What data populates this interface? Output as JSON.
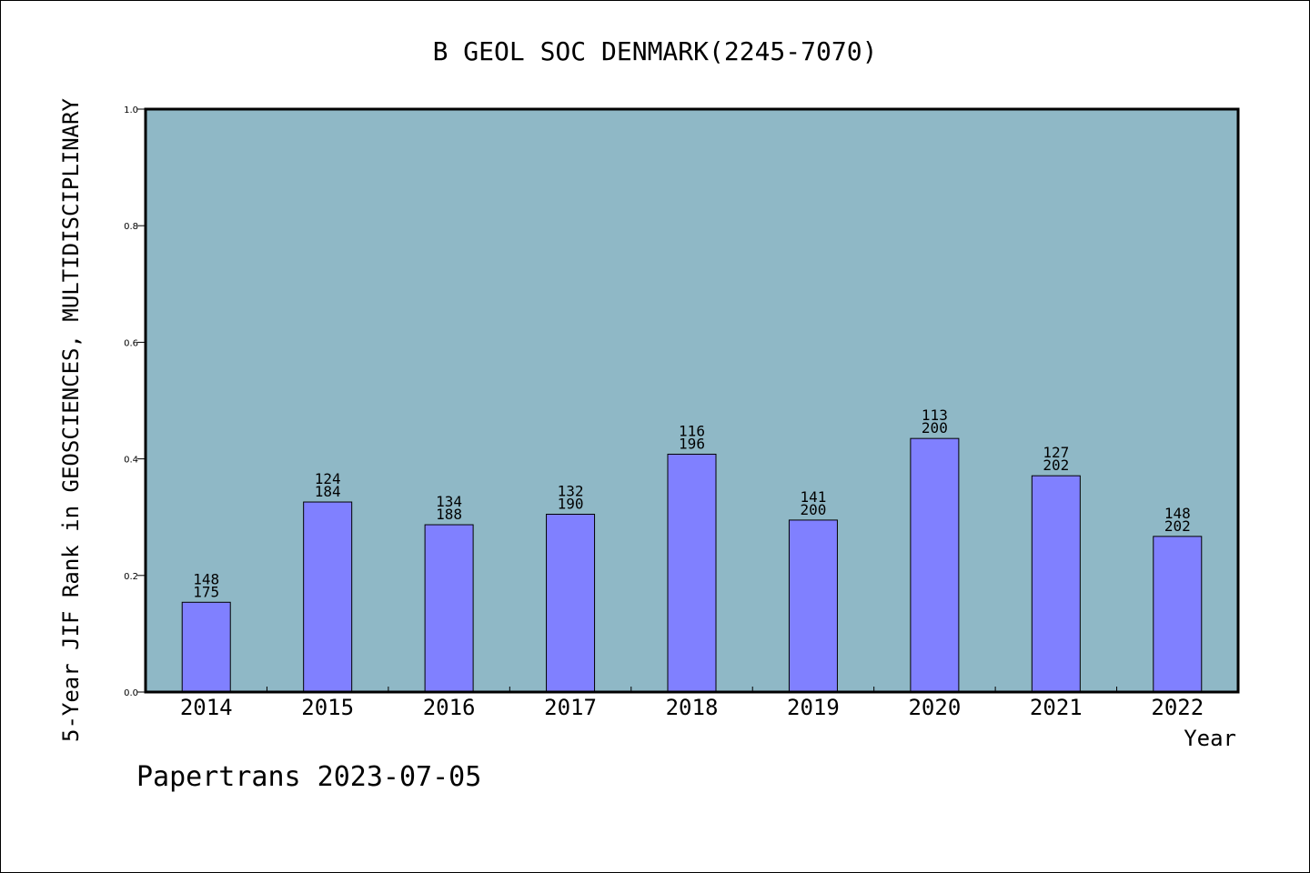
{
  "chart_data": {
    "type": "bar",
    "title": "B GEOL SOC DENMARK(2245-7070)",
    "xlabel": "Year",
    "ylabel": "5-Year JIF Rank in GEOSCIENCES, MULTIDISCIPLINARY",
    "ylim": [
      0,
      1.0
    ],
    "yticks": [
      "0.0",
      "0.2",
      "0.4",
      "0.6",
      "0.8",
      "1.0"
    ],
    "categories": [
      "2014",
      "2015",
      "2016",
      "2017",
      "2018",
      "2019",
      "2020",
      "2021",
      "2022"
    ],
    "values": [
      0.154,
      0.326,
      0.287,
      0.305,
      0.408,
      0.295,
      0.435,
      0.371,
      0.267
    ],
    "rank_labels": [
      [
        "148",
        "175"
      ],
      [
        "124",
        "184"
      ],
      [
        "134",
        "188"
      ],
      [
        "132",
        "190"
      ],
      [
        "116",
        "196"
      ],
      [
        "141",
        "200"
      ],
      [
        "113",
        "200"
      ],
      [
        "127",
        "202"
      ],
      [
        "148",
        "202"
      ]
    ],
    "grid": false,
    "legend": "none",
    "colors": {
      "plot_background": "#8fb8c6",
      "bar": "#8080ff",
      "bar_edge": "#000000",
      "axis": "#000000"
    }
  },
  "footer": {
    "source": "Papertrans 2023-07-05"
  }
}
